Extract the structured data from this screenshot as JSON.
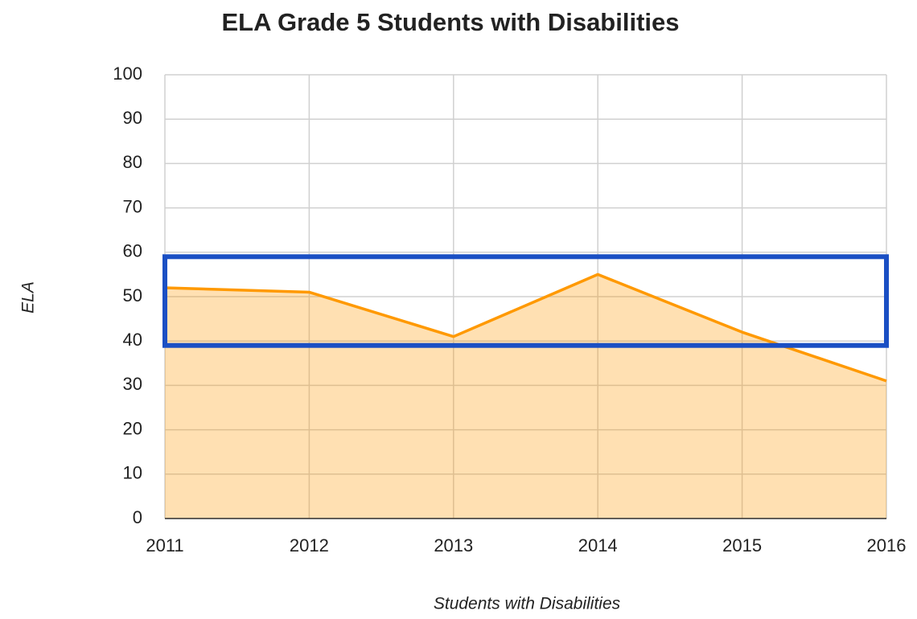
{
  "chart_data": {
    "type": "area",
    "title": "ELA Grade 5 Students with Disabilities",
    "x_label": "Students with Disabilities",
    "y_label": "ELA",
    "x": [
      2011,
      2012,
      2013,
      2014,
      2015,
      2016
    ],
    "series": [
      {
        "name": "Students with Disabilities",
        "color": "#ff9900",
        "values": [
          52,
          51,
          41,
          55,
          42,
          31
        ]
      }
    ],
    "xlim": [
      2011,
      2016
    ],
    "xticks": [
      2011,
      2012,
      2013,
      2014,
      2015,
      2016
    ],
    "ylim": [
      0,
      100
    ],
    "yticks": [
      0,
      10,
      20,
      30,
      40,
      50,
      60,
      70,
      80,
      90,
      100
    ],
    "grid": true,
    "highlight": {
      "ylim": [
        39,
        59
      ],
      "color": "#1a4fc4"
    }
  }
}
